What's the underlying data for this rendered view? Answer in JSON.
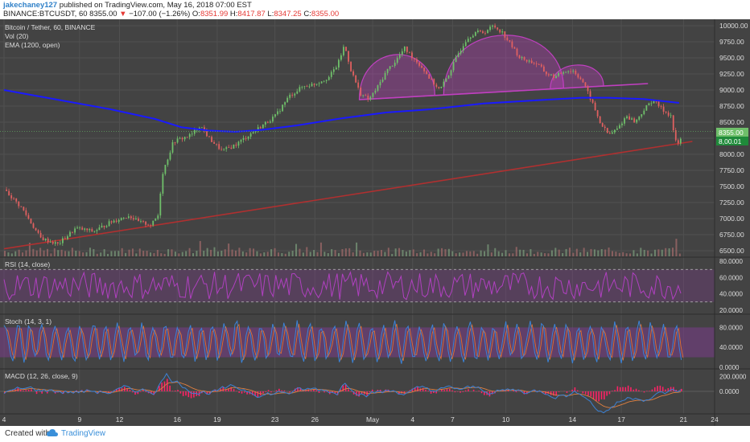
{
  "header": {
    "username": "jakechaney127",
    "published": "published on TradingView.com, May 16, 2018 07:00 EST",
    "symbol": "BINANCE:BTCUSDT, 60",
    "last": "8355.00",
    "change": "−107.00 (−1.26%)",
    "o_label": "O:",
    "o_value": "8351.99",
    "h_label": "H:",
    "h_value": "8417.87",
    "l_label": "L:",
    "l_value": "8347.25",
    "c_label": "C:",
    "c_value": "8355.00"
  },
  "panes": {
    "main": {
      "title": "Bitcoin / Tether, 60, BINANCE",
      "vol": "Vol (20)",
      "ema": "EMA (1200, open)"
    },
    "rsi": {
      "title": "RSI (14, close)"
    },
    "stoch": {
      "title": "Stoch (14, 3, 1)"
    },
    "macd": {
      "title": "MACD (12, 26, close, 9)"
    }
  },
  "price_tags": {
    "last": "8355.00",
    "ema": "8,00.01"
  },
  "footer": {
    "created": "Created with",
    "brand": "TradingView"
  },
  "colors": {
    "bg": "#434343",
    "grid": "#505050",
    "up": "#6fbf6a",
    "down": "#e06060",
    "ema": "#1a1aff",
    "pattern": "#c040c0",
    "trend": "#b03030",
    "rsi": "#b040c0",
    "stoch_k": "#3b82d6",
    "stoch_d": "#e07030",
    "macd": "#3b82d6",
    "signal": "#e08040",
    "hist": "#ff2266"
  },
  "chart_data": {
    "type": "candlestick",
    "title": "Bitcoin / Tether, 60, BINANCE",
    "x_ticks": [
      "4",
      "9",
      "12",
      "16",
      "19",
      "23",
      "26",
      "May",
      "4",
      "7",
      "10",
      "14",
      "17",
      "21",
      "24"
    ],
    "price_axis": {
      "ticks": [
        "10000.00",
        "9750.00",
        "9500.00",
        "9250.00",
        "9000.00",
        "8750.00",
        "8500.00",
        "8250.00",
        "8000.00",
        "7750.00",
        "7500.00",
        "7250.00",
        "7000.00",
        "6750.00",
        "6500.00"
      ],
      "range": [
        6400,
        10050
      ]
    },
    "price_path": [
      [
        0,
        7450
      ],
      [
        4,
        7150
      ],
      [
        8,
        6700
      ],
      [
        12,
        6600
      ],
      [
        16,
        6850
      ],
      [
        20,
        6800
      ],
      [
        24,
        6950
      ],
      [
        28,
        7050
      ],
      [
        30,
        6950
      ],
      [
        33,
        6900
      ],
      [
        34.5,
        7050
      ],
      [
        35.5,
        7700
      ],
      [
        38,
        8200
      ],
      [
        40,
        8250
      ],
      [
        42,
        8300
      ],
      [
        44,
        8450
      ],
      [
        46,
        8250
      ],
      [
        49,
        8050
      ],
      [
        52,
        8150
      ],
      [
        55,
        8300
      ],
      [
        58,
        8450
      ],
      [
        61,
        8600
      ],
      [
        64,
        8900
      ],
      [
        67,
        9050
      ],
      [
        70,
        9100
      ],
      [
        73,
        9200
      ],
      [
        75,
        9400
      ],
      [
        76.5,
        9700
      ],
      [
        78,
        9300
      ],
      [
        80,
        8950
      ],
      [
        82,
        8850
      ],
      [
        84,
        9050
      ],
      [
        86,
        9300
      ],
      [
        88,
        9450
      ],
      [
        90,
        9650
      ],
      [
        92,
        9500
      ],
      [
        94,
        9350
      ],
      [
        96,
        9150
      ],
      [
        98,
        9000
      ],
      [
        100,
        9250
      ],
      [
        102,
        9550
      ],
      [
        104,
        9800
      ],
      [
        106,
        9900
      ],
      [
        108,
        9900
      ],
      [
        110,
        10000
      ],
      [
        112,
        9900
      ],
      [
        114,
        9700
      ],
      [
        116,
        9500
      ],
      [
        118,
        9450
      ],
      [
        120,
        9400
      ],
      [
        122,
        9250
      ],
      [
        124,
        9200
      ],
      [
        126,
        9300
      ],
      [
        128,
        9300
      ],
      [
        130,
        9150
      ],
      [
        132,
        8850
      ],
      [
        134,
        8500
      ],
      [
        136,
        8300
      ],
      [
        138,
        8400
      ],
      [
        140,
        8600
      ],
      [
        142,
        8500
      ],
      [
        144,
        8700
      ],
      [
        146,
        8850
      ],
      [
        148,
        8700
      ],
      [
        150,
        8600
      ],
      [
        151,
        8200
      ],
      [
        152,
        8150
      ],
      [
        152.5,
        8355
      ]
    ],
    "ema_path": [
      [
        0,
        9000
      ],
      [
        12,
        8850
      ],
      [
        24,
        8700
      ],
      [
        34,
        8550
      ],
      [
        40,
        8420
      ],
      [
        46,
        8370
      ],
      [
        52,
        8350
      ],
      [
        58,
        8380
      ],
      [
        66,
        8450
      ],
      [
        76,
        8560
      ],
      [
        86,
        8650
      ],
      [
        96,
        8700
      ],
      [
        108,
        8790
      ],
      [
        120,
        8840
      ],
      [
        130,
        8880
      ],
      [
        136,
        8880
      ],
      [
        144,
        8860
      ],
      [
        152,
        8800
      ]
    ],
    "pattern_neckline": [
      [
        80,
        8850
      ],
      [
        145,
        9100
      ]
    ],
    "trend_line": [
      [
        0,
        6530
      ],
      [
        155,
        8200
      ]
    ],
    "rsi": {
      "ticks": [
        "80.0000",
        "60.0000",
        "40.0000",
        "20.0000"
      ],
      "levels": [
        70,
        30
      ],
      "range": [
        15,
        85
      ]
    },
    "stoch": {
      "ticks": [
        "80.0000",
        "40.0000",
        "0.0000"
      ],
      "levels": [
        80,
        20
      ],
      "range": [
        0,
        100
      ]
    },
    "macd": {
      "ticks": [
        "200.0000",
        "0.0000"
      ],
      "range": [
        -300,
        300
      ]
    }
  }
}
